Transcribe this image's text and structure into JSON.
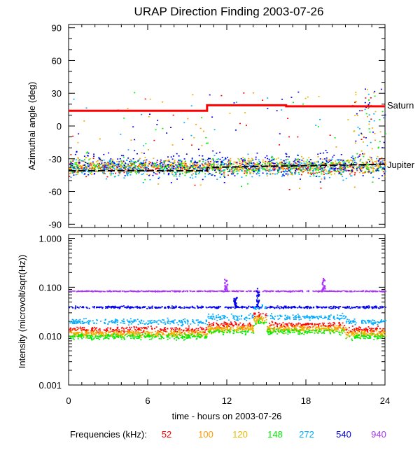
{
  "chart_data": {
    "type": "scatter",
    "title": "URAP Direction Finding  2003-07-26",
    "xlabel": "time - hours on 2003-07-26",
    "xlim": [
      0,
      24
    ],
    "x_ticks": [
      0,
      6,
      12,
      18,
      24
    ],
    "x_tick_labels": [
      "0",
      "6",
      "12",
      "18",
      "24"
    ],
    "legend": {
      "label": "Frequencies (kHz):",
      "entries": [
        {
          "name": "52",
          "color": "#ff0000"
        },
        {
          "name": "100",
          "color": "#ff9900"
        },
        {
          "name": "120",
          "color": "#e6b800"
        },
        {
          "name": "148",
          "color": "#00ee00"
        },
        {
          "name": "272",
          "color": "#00aaff"
        },
        {
          "name": "540",
          "color": "#0000ee"
        },
        {
          "name": "940",
          "color": "#aa33ff"
        }
      ]
    },
    "panels": [
      {
        "id": "azimuth",
        "ylabel": "Azimuthal angle (deg)",
        "ylim": [
          -93,
          93
        ],
        "y_ticks": [
          90,
          60,
          30,
          0,
          -30,
          -60,
          -90
        ],
        "y_tick_labels": [
          "90",
          "60",
          "30",
          "0",
          "-30",
          "-60",
          "-90"
        ],
        "reference_lines": [
          {
            "name": "Saturn",
            "color": "#ff0000",
            "x": [
              0,
              10.5,
              10.5,
              16.5,
              16.5,
              24
            ],
            "y": [
              14,
              14,
              19,
              19,
              18,
              18
            ]
          },
          {
            "name": "Jupiter",
            "color": "#000000",
            "x": [
              0,
              10.5,
              10.5,
              24
            ],
            "y": [
              -41,
              -41,
              -38,
              -35
            ]
          }
        ],
        "series_levels": [
          {
            "name": "52",
            "center": -38,
            "spread": 5
          },
          {
            "name": "100",
            "center": -37,
            "spread": 6
          },
          {
            "name": "120",
            "center": -36,
            "spread": 6
          },
          {
            "name": "148",
            "center": -37,
            "spread": 6
          },
          {
            "name": "272",
            "center": -38,
            "spread": 8
          },
          {
            "name": "540",
            "center": -35,
            "spread": 10
          }
        ]
      },
      {
        "id": "intensity",
        "ylabel": "Intensity (microvolt/sqrt(Hz))",
        "scale": "log",
        "ylim": [
          0.001,
          1.2
        ],
        "y_ticks": [
          1.0,
          0.1,
          0.01,
          0.001
        ],
        "y_tick_labels": [
          "1.000",
          "0.100",
          "0.010",
          "0.001"
        ],
        "series_levels": [
          {
            "name": "940",
            "level": 0.085
          },
          {
            "name": "540",
            "level": 0.04
          },
          {
            "name": "272",
            "level": 0.02
          },
          {
            "name": "52",
            "level": 0.014
          },
          {
            "name": "100",
            "level": 0.012
          },
          {
            "name": "120",
            "level": 0.011
          },
          {
            "name": "148",
            "level": 0.01
          }
        ],
        "bursts": [
          {
            "name": "940",
            "x": 11.9,
            "peak": 0.15
          },
          {
            "name": "940",
            "x": 19.3,
            "peak": 0.16
          },
          {
            "name": "540",
            "x": 14.3,
            "peak": 0.1
          },
          {
            "name": "540",
            "x": 12.6,
            "peak": 0.065
          }
        ]
      }
    ]
  }
}
